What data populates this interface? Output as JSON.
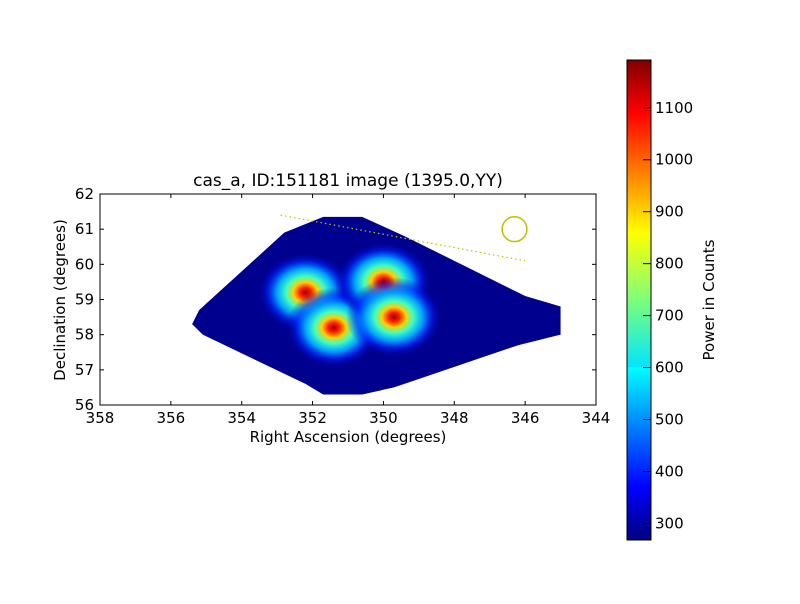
{
  "chart_data": {
    "type": "heatmap",
    "title": "cas_a, ID:151181 image (1395.0,YY)",
    "xlabel": "Right Ascension (degrees)",
    "ylabel": "Declination (degrees)",
    "xlim": [
      358,
      344
    ],
    "ylim": [
      56,
      62
    ],
    "xticks": [
      "358",
      "356",
      "354",
      "352",
      "350",
      "348",
      "346",
      "344"
    ],
    "yticks": [
      "56",
      "57",
      "58",
      "59",
      "60",
      "61",
      "62"
    ],
    "colorbar": {
      "label": "Power in Counts",
      "range": [
        268,
        1192
      ],
      "ticks": [
        "300",
        "400",
        "500",
        "600",
        "700",
        "800",
        "900",
        "1000",
        "1100"
      ],
      "colormap": "jet"
    },
    "background_value": 290,
    "coverage_outline": [
      [
        355.4,
        58.3
      ],
      [
        355.2,
        58.7
      ],
      [
        352.8,
        60.9
      ],
      [
        351.7,
        61.35
      ],
      [
        350.6,
        61.35
      ],
      [
        349.4,
        60.8
      ],
      [
        346.0,
        59.1
      ],
      [
        345.0,
        58.8
      ],
      [
        345.0,
        58.0
      ],
      [
        346.2,
        57.7
      ],
      [
        349.7,
        56.5
      ],
      [
        350.6,
        56.3
      ],
      [
        351.7,
        56.3
      ],
      [
        352.2,
        56.6
      ],
      [
        355.1,
        58.0
      ]
    ],
    "peaks": [
      {
        "ra": 352.2,
        "dec": 59.2,
        "value": 1150
      },
      {
        "ra": 351.4,
        "dec": 58.2,
        "value": 1130
      },
      {
        "ra": 350.0,
        "dec": 59.5,
        "value": 1120
      },
      {
        "ra": 349.7,
        "dec": 58.5,
        "value": 1160
      }
    ],
    "overlays": {
      "dotted_line": [
        [
          352.9,
          61.4
        ],
        [
          346.0,
          60.1
        ]
      ],
      "circle": {
        "ra": 346.3,
        "dec": 61.0,
        "radius_deg": 0.35
      },
      "color": "#bfbf00"
    }
  }
}
